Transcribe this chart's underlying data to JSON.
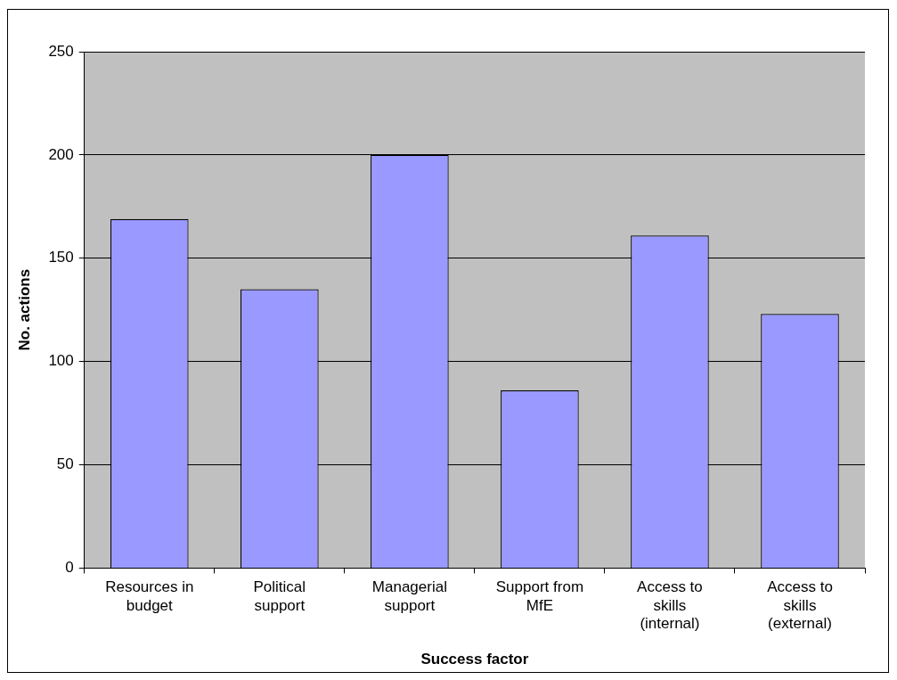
{
  "chart_data": {
    "type": "bar",
    "xlabel": "Success factor",
    "ylabel": "No. actions",
    "categories": [
      "Resources in budget",
      "Political support",
      "Managerial support",
      "Support from MfE",
      "Access to skills (internal)",
      "Access to skills (external)"
    ],
    "values": [
      169,
      135,
      200,
      86,
      161,
      123
    ],
    "color": "#9999ff",
    "ylim": [
      0,
      250
    ],
    "yticks": [
      0,
      50,
      100,
      150,
      200,
      250
    ],
    "grid": "y",
    "legend": false
  }
}
